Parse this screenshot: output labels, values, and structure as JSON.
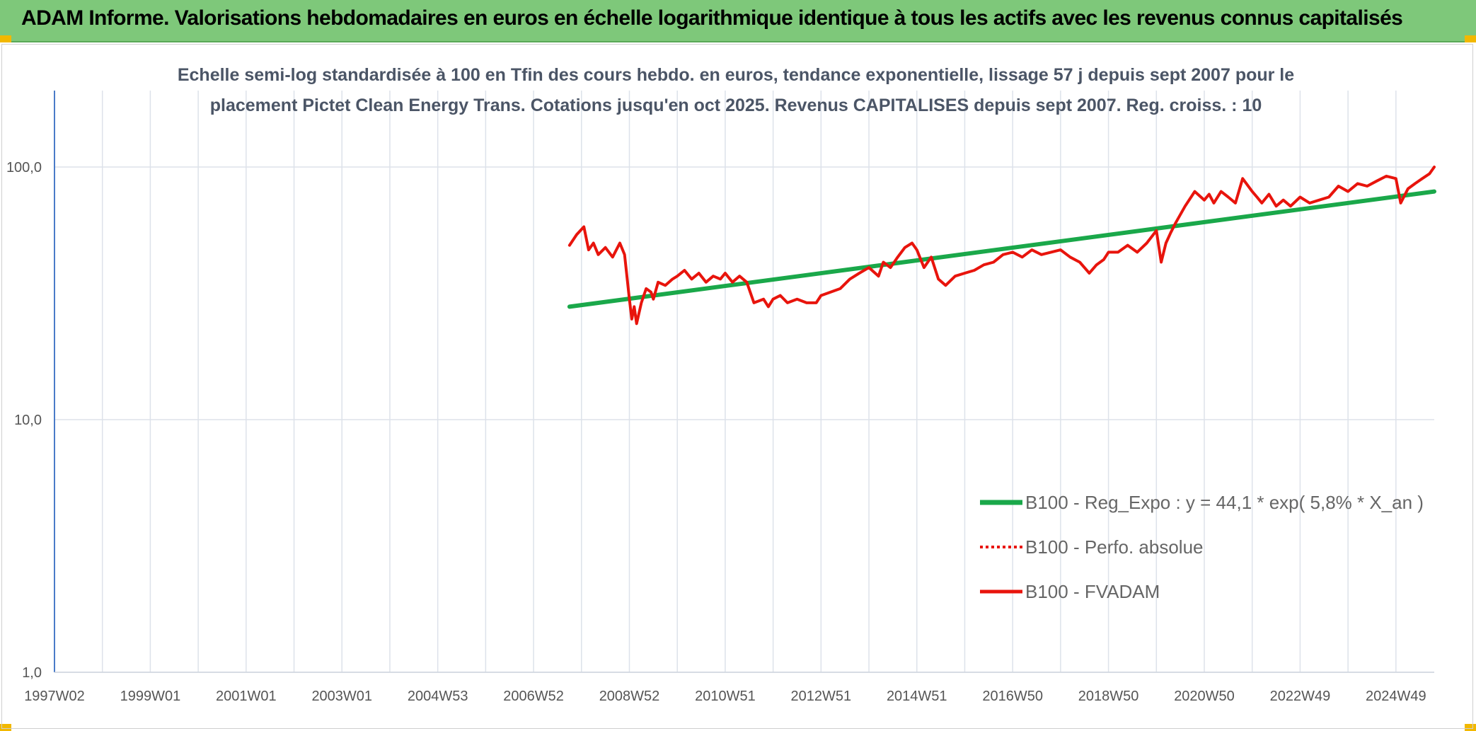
{
  "banner": {
    "title": "ADAM Informe. Valorisations hebdomadaires en euros en échelle logarithmique identique à tous les actifs avec les revenus connus capitalisés"
  },
  "colors": {
    "banner_bg": "#7ec87a",
    "trend": "#1aa84a",
    "fvadam": "#e8140c",
    "perfo": "#e8140c",
    "axis": "#4a7bc8",
    "grid": "#dde2ea",
    "corner": "#f2b800"
  },
  "chart_data": {
    "type": "line",
    "title_lines": [
      "Echelle semi-log standardisée à 100 en Tfin des cours hebdo. en euros, tendance exponentielle, lissage 57 j depuis sept 2007 pour le",
      "placement Pictet Clean Energy Trans. Cotations jusqu'en oct 2025. Revenus CAPITALISES depuis sept 2007. Reg. croiss. : 10"
    ],
    "y_scale": "log",
    "ylim": [
      1,
      100
    ],
    "y_ticks": [
      "1,0",
      "10,0",
      "100,0"
    ],
    "x_range": [
      1997.0,
      2025.8
    ],
    "x_ticks": [
      {
        "label": "1997W02",
        "x": 1997.0
      },
      {
        "label": "1999W01",
        "x": 1999.0
      },
      {
        "label": "2001W01",
        "x": 2001.0
      },
      {
        "label": "2003W01",
        "x": 2003.0
      },
      {
        "label": "2004W53",
        "x": 2005.0
      },
      {
        "label": "2006W52",
        "x": 2007.0
      },
      {
        "label": "2008W52",
        "x": 2009.0
      },
      {
        "label": "2010W51",
        "x": 2011.0
      },
      {
        "label": "2012W51",
        "x": 2013.0
      },
      {
        "label": "2014W51",
        "x": 2015.0
      },
      {
        "label": "2016W50",
        "x": 2017.0
      },
      {
        "label": "2018W50",
        "x": 2019.0
      },
      {
        "label": "2020W50",
        "x": 2021.0
      },
      {
        "label": "2022W49",
        "x": 2023.0
      },
      {
        "label": "2024W49",
        "x": 2025.0
      }
    ],
    "grid": true,
    "legend_position": "bottom-right",
    "series": [
      {
        "name": "B100 - Reg_Expo : y = 44,1 * exp( 5,8% *  X_an )",
        "style": "solid-green",
        "x": [
          2007.75,
          2025.8
        ],
        "y": [
          28.0,
          80.0
        ]
      },
      {
        "name": "B100 - Perfo. absolue",
        "style": "dotted-red",
        "x": [],
        "y": []
      },
      {
        "name": "B100 - FVADAM",
        "style": "solid-red",
        "x": [
          2007.75,
          2007.9,
          2008.05,
          2008.15,
          2008.25,
          2008.35,
          2008.5,
          2008.65,
          2008.8,
          2008.9,
          2009.0,
          2009.05,
          2009.1,
          2009.15,
          2009.25,
          2009.35,
          2009.45,
          2009.5,
          2009.6,
          2009.75,
          2009.9,
          2010.0,
          2010.15,
          2010.3,
          2010.45,
          2010.6,
          2010.75,
          2010.9,
          2011.0,
          2011.15,
          2011.3,
          2011.45,
          2011.6,
          2011.8,
          2011.9,
          2012.0,
          2012.15,
          2012.3,
          2012.5,
          2012.7,
          2012.9,
          2013.0,
          2013.2,
          2013.4,
          2013.6,
          2013.8,
          2014.0,
          2014.2,
          2014.3,
          2014.45,
          2014.6,
          2014.75,
          2014.9,
          2015.0,
          2015.15,
          2015.3,
          2015.45,
          2015.6,
          2015.8,
          2016.0,
          2016.2,
          2016.4,
          2016.6,
          2016.8,
          2017.0,
          2017.2,
          2017.4,
          2017.6,
          2017.8,
          2018.0,
          2018.2,
          2018.4,
          2018.6,
          2018.75,
          2018.9,
          2019.0,
          2019.2,
          2019.4,
          2019.6,
          2019.8,
          2020.0,
          2020.1,
          2020.2,
          2020.3,
          2020.4,
          2020.6,
          2020.8,
          2021.0,
          2021.1,
          2021.2,
          2021.35,
          2021.5,
          2021.65,
          2021.8,
          2022.0,
          2022.1,
          2022.2,
          2022.35,
          2022.5,
          2022.65,
          2022.8,
          2023.0,
          2023.2,
          2023.4,
          2023.6,
          2023.8,
          2024.0,
          2024.2,
          2024.4,
          2024.6,
          2024.8,
          2025.0,
          2025.1,
          2025.25,
          2025.4,
          2025.55,
          2025.7,
          2025.8
        ],
        "y": [
          49,
          54,
          58,
          47,
          50,
          45,
          48,
          44,
          50,
          45,
          30,
          25,
          28,
          24,
          29,
          33,
          32,
          30,
          35,
          34,
          36,
          37,
          39,
          36,
          38,
          35,
          37,
          36,
          38,
          35,
          37,
          35,
          29,
          30,
          28,
          30,
          31,
          29,
          30,
          29,
          29,
          31,
          32,
          33,
          36,
          38,
          40,
          37,
          42,
          40,
          44,
          48,
          50,
          47,
          40,
          44,
          36,
          34,
          37,
          38,
          39,
          41,
          42,
          45,
          46,
          44,
          47,
          45,
          46,
          47,
          44,
          42,
          38,
          41,
          43,
          46,
          46,
          49,
          46,
          50,
          56,
          42,
          50,
          55,
          60,
          70,
          80,
          74,
          78,
          72,
          80,
          76,
          72,
          90,
          80,
          76,
          72,
          78,
          70,
          74,
          70,
          76,
          72,
          74,
          76,
          84,
          80,
          86,
          84,
          88,
          92,
          90,
          72,
          82,
          86,
          90,
          94,
          100
        ]
      }
    ]
  }
}
